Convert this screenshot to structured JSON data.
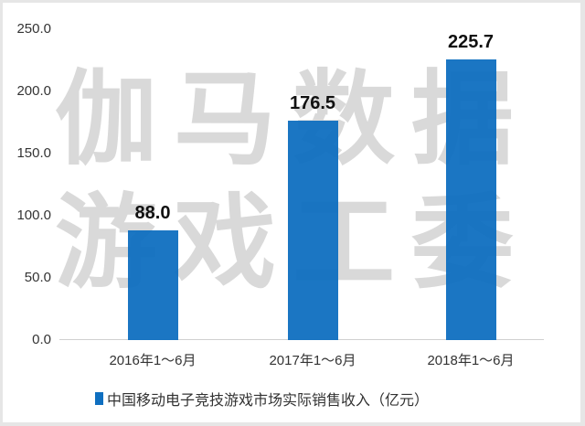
{
  "chart_data": {
    "type": "bar",
    "title": "",
    "categories": [
      "2016年1～6月",
      "2017年1～6月",
      "2018年1～6月"
    ],
    "values": [
      88.0,
      176.5,
      225.7
    ],
    "value_labels": [
      "88.0",
      "176.5",
      "225.7"
    ],
    "series": [
      {
        "name": "中国移动电子竞技游戏市场实际销售收入（亿元）",
        "values": [
          88.0,
          176.5,
          225.7
        ],
        "color": "#0f6fc0"
      }
    ],
    "xlabel": "",
    "ylabel": "",
    "ylim": [
      0,
      250
    ],
    "yticks": [
      "0.0",
      "50.0",
      "100.0",
      "150.0",
      "200.0",
      "250.0"
    ],
    "grid": false,
    "legend_position": "bottom"
  },
  "watermark": {
    "line1": "伽马数据",
    "line2": "游戏工委"
  },
  "legend": {
    "label": "中国移动电子竞技游戏市场实际销售收入（亿元）"
  }
}
